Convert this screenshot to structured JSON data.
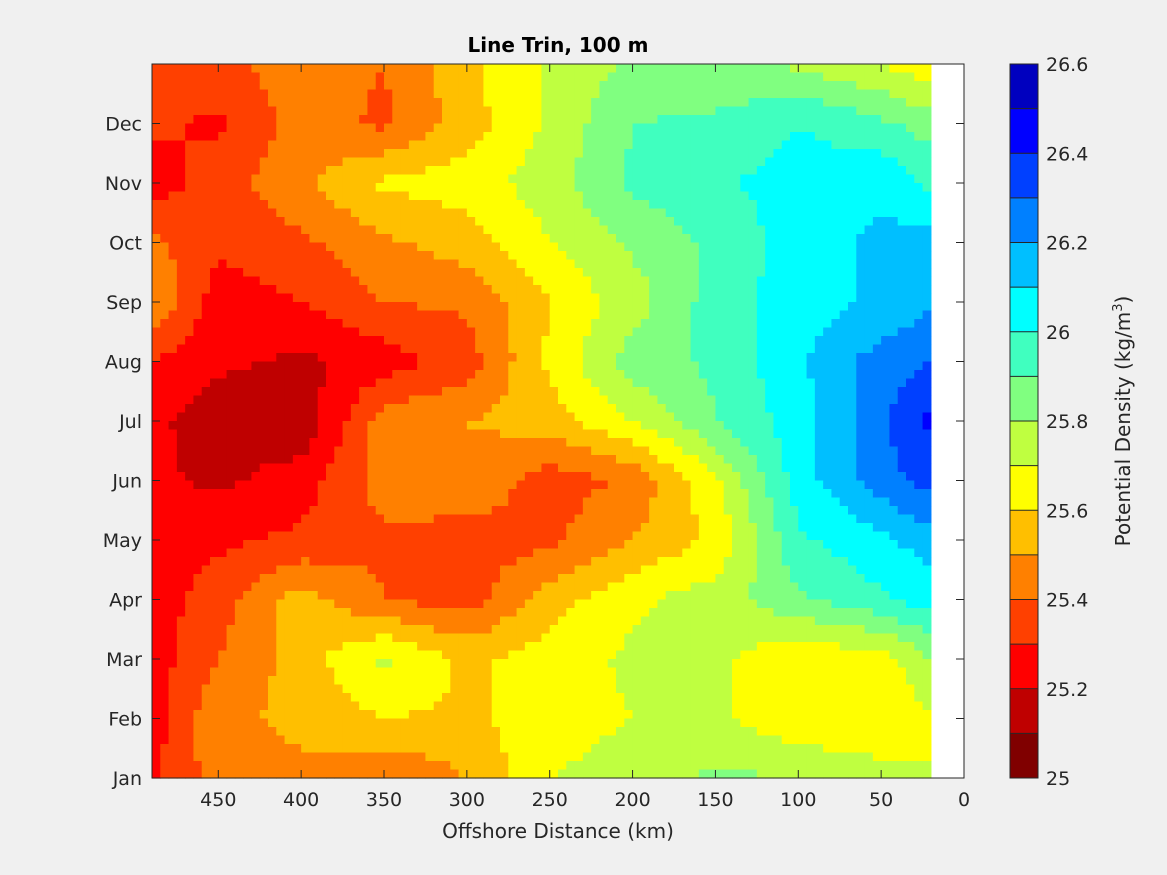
{
  "chart_data": {
    "type": "heatmap",
    "title": "Line Trin, 100 m",
    "xlabel": "Offshore Distance (km)",
    "ylabel": "",
    "x_axis_reversed": true,
    "xlim": [
      0,
      490
    ],
    "x_ticks": [
      450,
      400,
      350,
      300,
      250,
      200,
      150,
      100,
      50,
      0
    ],
    "x_tick_labels": [
      "450",
      "400",
      "350",
      "300",
      "250",
      "200",
      "150",
      "100",
      "50",
      "0"
    ],
    "y_tick_labels": [
      "Jan",
      "Feb",
      "Mar",
      "Apr",
      "May",
      "Jun",
      "Jul",
      "Aug",
      "Sep",
      "Oct",
      "Nov",
      "Dec"
    ],
    "data_xlim_km": [
      20,
      490
    ],
    "colorbar": {
      "label": "Potential Density (kg/m",
      "label_superscript": "3",
      "label_suffix": ")",
      "range": [
        25,
        26.6
      ],
      "ticks": [
        "25",
        "25.2",
        "25.4",
        "25.6",
        "25.8",
        "26",
        "26.2",
        "26.4",
        "26.6"
      ],
      "levels": [
        {
          "min": 25.0,
          "color": "#800000"
        },
        {
          "min": 25.1,
          "color": "#bf0000"
        },
        {
          "min": 25.2,
          "color": "#ff0000"
        },
        {
          "min": 25.3,
          "color": "#ff4000"
        },
        {
          "min": 25.4,
          "color": "#ff8000"
        },
        {
          "min": 25.5,
          "color": "#ffbf00"
        },
        {
          "min": 25.6,
          "color": "#ffff00"
        },
        {
          "min": 25.7,
          "color": "#bfff40"
        },
        {
          "min": 25.8,
          "color": "#80ff80"
        },
        {
          "min": 25.9,
          "color": "#40ffbf"
        },
        {
          "min": 26.0,
          "color": "#00ffff"
        },
        {
          "min": 26.1,
          "color": "#00bfff"
        },
        {
          "min": 26.2,
          "color": "#0080ff"
        },
        {
          "min": 26.3,
          "color": "#0040ff"
        },
        {
          "min": 26.4,
          "color": "#0000ff"
        },
        {
          "min": 26.5,
          "color": "#0000bf"
        }
      ]
    },
    "x_km": [
      490,
      450,
      400,
      350,
      300,
      250,
      200,
      150,
      100,
      50,
      20
    ],
    "y_month": [
      1,
      2,
      3,
      4,
      5,
      6,
      7,
      8,
      9,
      10,
      11,
      12,
      13
    ],
    "z": [
      [
        25.28,
        25.45,
        25.48,
        25.4,
        25.5,
        25.7,
        25.75,
        25.82,
        25.8,
        25.75,
        25.7
      ],
      [
        25.25,
        25.48,
        25.52,
        25.6,
        25.58,
        25.65,
        25.7,
        25.72,
        25.62,
        25.6,
        25.7
      ],
      [
        25.25,
        25.4,
        25.55,
        25.72,
        25.58,
        25.65,
        25.72,
        25.72,
        25.62,
        25.65,
        25.8
      ],
      [
        25.25,
        25.35,
        25.55,
        25.4,
        25.35,
        25.55,
        25.68,
        25.75,
        25.88,
        25.98,
        26.05
      ],
      [
        25.25,
        25.28,
        25.32,
        25.38,
        25.35,
        25.38,
        25.5,
        25.62,
        25.98,
        26.08,
        26.15
      ],
      [
        25.22,
        25.18,
        25.25,
        25.45,
        25.48,
        25.35,
        25.42,
        25.68,
        26.05,
        26.25,
        26.35
      ],
      [
        25.22,
        25.15,
        25.12,
        25.45,
        25.5,
        25.55,
        25.7,
        25.9,
        26.05,
        26.28,
        26.42
      ],
      [
        25.3,
        25.22,
        25.18,
        25.25,
        25.35,
        25.62,
        25.85,
        25.92,
        26.08,
        26.25,
        26.3
      ],
      [
        25.5,
        25.25,
        25.3,
        25.4,
        25.42,
        25.6,
        25.75,
        25.95,
        26.05,
        26.12,
        26.18
      ],
      [
        25.42,
        25.32,
        25.38,
        25.48,
        25.55,
        25.7,
        25.82,
        25.92,
        26.05,
        26.12,
        26.15
      ],
      [
        25.25,
        25.35,
        25.48,
        25.62,
        25.65,
        25.75,
        25.92,
        25.98,
        26.05,
        26.08,
        25.98
      ],
      [
        25.32,
        25.28,
        25.45,
        25.38,
        25.55,
        25.72,
        25.9,
        25.92,
        26.0,
        25.92,
        25.85
      ],
      [
        25.3,
        25.38,
        25.45,
        25.4,
        25.58,
        25.72,
        25.82,
        25.82,
        25.78,
        25.7,
        25.62
      ]
    ]
  }
}
